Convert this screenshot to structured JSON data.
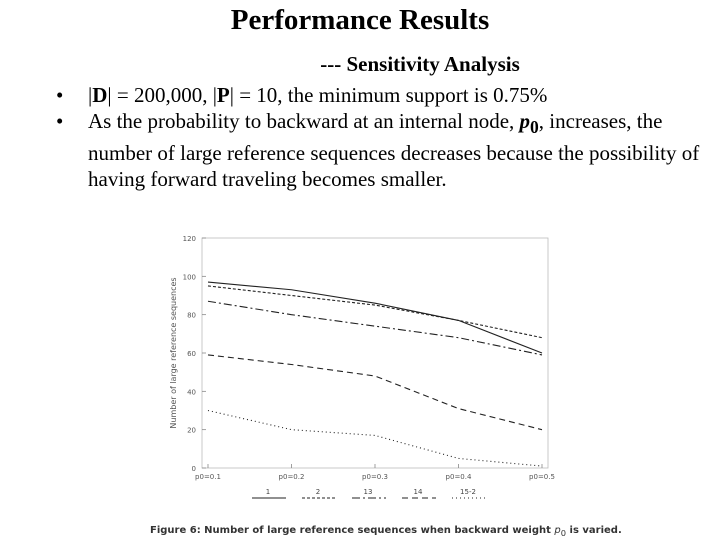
{
  "slide": {
    "title": "Performance Results",
    "subtitle": "--- Sensitivity Analysis",
    "bullet1": {
      "D": "D",
      "text1": "| = 200,000, |",
      "P": "P",
      "text2": "| = 10, the minimum  support is  0.75%"
    },
    "bullet2": {
      "text": "As the probability to backward at an internal node, ",
      "p0": "p",
      "p0_sub": "0",
      "rest": ", increases, the number of large reference sequences decreases because the possibility of having forward traveling becomes smaller."
    }
  },
  "caption": {
    "label": "Figure 6: ",
    "text": "Number of large reference sequences when backward weight ",
    "var": "p",
    "var_sub": "0",
    "end": " is varied."
  },
  "chart_data": {
    "type": "line",
    "ylabel": "Number of large reference sequences",
    "xlabel": "",
    "categories": [
      "p0=0.1",
      "p0=0.2",
      "p0=0.3",
      "p0=0.4",
      "p0=0.5"
    ],
    "ylim": [
      0,
      120
    ],
    "yticks": [
      0,
      20,
      40,
      60,
      80,
      100,
      120
    ],
    "legend_position": "bottom",
    "series": [
      {
        "name": "1",
        "values": [
          97,
          93,
          86,
          77,
          60
        ],
        "dash": "none"
      },
      {
        "name": "2",
        "values": [
          95,
          90,
          85,
          77,
          68
        ],
        "dash": "3,2"
      },
      {
        "name": "13",
        "values": [
          87,
          80,
          74,
          68,
          59
        ],
        "dash": "8,3,2,3"
      },
      {
        "name": "14",
        "values": [
          59,
          54,
          48,
          31,
          20
        ],
        "dash": "6,4"
      },
      {
        "name": "15-2",
        "values": [
          30,
          20,
          17,
          5,
          1
        ],
        "dash": "1,3"
      }
    ]
  }
}
